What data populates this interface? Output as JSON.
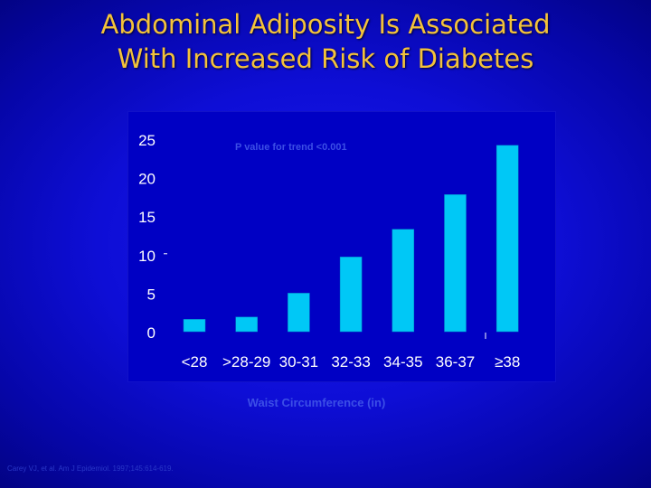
{
  "slide": {
    "title_line1": "Abdominal Adiposity Is Associated",
    "title_line2": "With Increased Risk of Diabetes",
    "citation": "Carey VJ, et al. Am J Epidemiol. 1997;145:614-619."
  },
  "colors": {
    "title": "#f3c23a",
    "bar": "#00c8f6",
    "bar_edge": "#0088c8",
    "panel": "#0000c4",
    "axis_text": "#ffffff",
    "faint_text": "#3c4fe6"
  },
  "chart_data": {
    "type": "bar",
    "title": "",
    "annotation": "P value for trend <0.001",
    "xlabel": "Waist Circumference (in)",
    "ylabel": "",
    "categories": [
      "<28",
      ">28-29",
      "30-31",
      "32-33",
      "34-35",
      "36-37",
      "≥38"
    ],
    "values": [
      1.6,
      1.9,
      5.0,
      9.7,
      13.3,
      17.8,
      24.2
    ],
    "ylim": [
      0,
      25
    ],
    "yticks": [
      0,
      5,
      10,
      15,
      20,
      25
    ],
    "grid": false,
    "legend": "none"
  }
}
